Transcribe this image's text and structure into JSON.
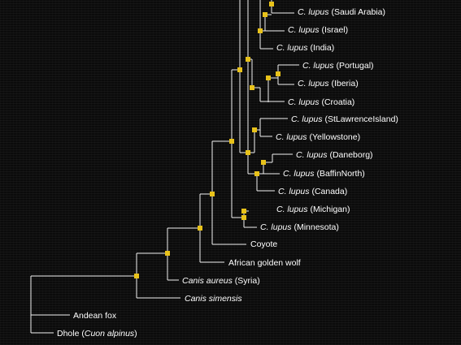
{
  "accent_node_color": "#e8c21a",
  "branch_color": "#f2f2f2",
  "background_color": "#0b0b0b",
  "taxa": {
    "saudi_arabia": {
      "species": "C. lupus",
      "place": " (Saudi Arabia)"
    },
    "israel": {
      "species": "C. lupus",
      "place": " (Israel)"
    },
    "india": {
      "species": "C. lupus",
      "place": " (India)"
    },
    "portugal": {
      "species": "C. lupus",
      "place": " (Portugal)"
    },
    "iberia": {
      "species": "C. lupus",
      "place": " (Iberia)"
    },
    "croatia": {
      "species": "C. lupus",
      "place": " (Croatia)"
    },
    "stlawrence": {
      "species": "C. lupus",
      "place": " (StLawrenceIsland)"
    },
    "yellowstone": {
      "species": "C. lupus",
      "place": " (Yellowstone)"
    },
    "daneborg": {
      "species": "C. lupus",
      "place": " (Daneborg)"
    },
    "baffin": {
      "species": "C. lupus",
      "place": " (BaffinNorth)"
    },
    "canada": {
      "species": "C. lupus",
      "place": " (Canada)"
    },
    "michigan": {
      "species": "C. lupus",
      "place": " (Michigan)"
    },
    "minnesota": {
      "species": "C. lupus",
      "place": " (Minnesota)"
    },
    "coyote": {
      "name": "Coyote"
    },
    "african_golden_wolf": {
      "name": "African golden wolf"
    },
    "canis_aureus": {
      "species": "Canis aureus",
      "place": " (Syria)"
    },
    "canis_simensis": {
      "species": "Canis simensis"
    },
    "andean_fox": {
      "name": "Andean fox"
    },
    "dhole": {
      "name": "Dhole (",
      "species": "Cuon alpinus",
      "close": ")"
    }
  }
}
